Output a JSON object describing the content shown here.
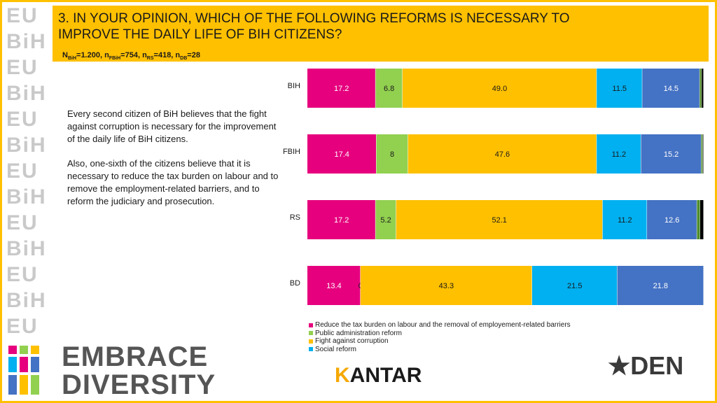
{
  "header": {
    "title_line1": "3. IN YOUR OPINION, WHICH OF THE FOLLOWING REFORMS IS NECESSARY TO",
    "title_line2": "IMPROVE THE DAILY LIFE OF BIH CITIZENS?",
    "sample": {
      "n1": "N",
      "s1": "BiH",
      "v1": "=1.200, ",
      "n2": "n",
      "s2": "FBiH",
      "v2": "=754, ",
      "n3": "n",
      "s3": "RS",
      "v3": "=418, ",
      "n4": "n",
      "s4": "DB",
      "v4": "=28"
    }
  },
  "text": {
    "para1": "Every second citizen of BiH believes that the fight against corruption is necessary for the improvement of the daily life of BiH citizens.",
    "para2": "Also, one-sixth of the citizens believe that it is necessary to reduce the tax burden on labour and to remove the employment-related barriers, and to reform the judiciary and prosecution."
  },
  "logos": {
    "left_strip": [
      "EU",
      "BiH",
      "EU",
      "BiH",
      "EU",
      "BiH",
      "EU",
      "BiH",
      "EU",
      "BiH",
      "EU",
      "BiH",
      "EU"
    ],
    "embrace_line1": "EMBRACE",
    "embrace_line2": "DIVERSITY",
    "kantar": "KANTAR",
    "den": "DEN"
  },
  "chart_data": {
    "type": "bar",
    "orientation": "horizontal",
    "stacked": true,
    "categories": [
      "BIH",
      "FBIH",
      "RS",
      "BD"
    ],
    "series": [
      {
        "name": "Reduce the tax burden on labour and the removal of employement-related barriers",
        "color": "#e6007e",
        "values": [
          17.2,
          17.4,
          17.2,
          13.4
        ],
        "labels": [
          "17.2",
          "17.4",
          "17.2",
          "13.4"
        ]
      },
      {
        "name": "Public administration reform",
        "color": "#92d050",
        "values": [
          6.8,
          8,
          5.2,
          0
        ],
        "labels": [
          "6.8",
          "8",
          "5.2",
          "0"
        ]
      },
      {
        "name": "Fight against corruption",
        "color": "#ffc000",
        "values": [
          49.0,
          47.6,
          52.1,
          43.3
        ],
        "labels": [
          "49.0",
          "47.6",
          "52.1",
          "43.3"
        ]
      },
      {
        "name": "Social reform",
        "color": "#00b0f0",
        "values": [
          11.5,
          11.2,
          11.2,
          21.5
        ],
        "labels": [
          "11.5",
          "11.2",
          "11.2",
          "21.5"
        ]
      },
      {
        "color": "#4472c4",
        "values": [
          14.5,
          15.2,
          12.6,
          21.8
        ],
        "labels": [
          "14.5",
          "15.2",
          "12.6",
          "21.8"
        ]
      },
      {
        "color": "#4e8c2b",
        "values": [
          0.5,
          0.4,
          0.8,
          0
        ],
        "labels": [
          "",
          "",
          "",
          ""
        ]
      },
      {
        "color": "#000000",
        "values": [
          0.5,
          0.2,
          0.9,
          0
        ],
        "labels": [
          "",
          "",
          "",
          ""
        ]
      }
    ],
    "xlim": [
      0,
      100
    ],
    "legend_position": "bottom",
    "grid": false
  }
}
